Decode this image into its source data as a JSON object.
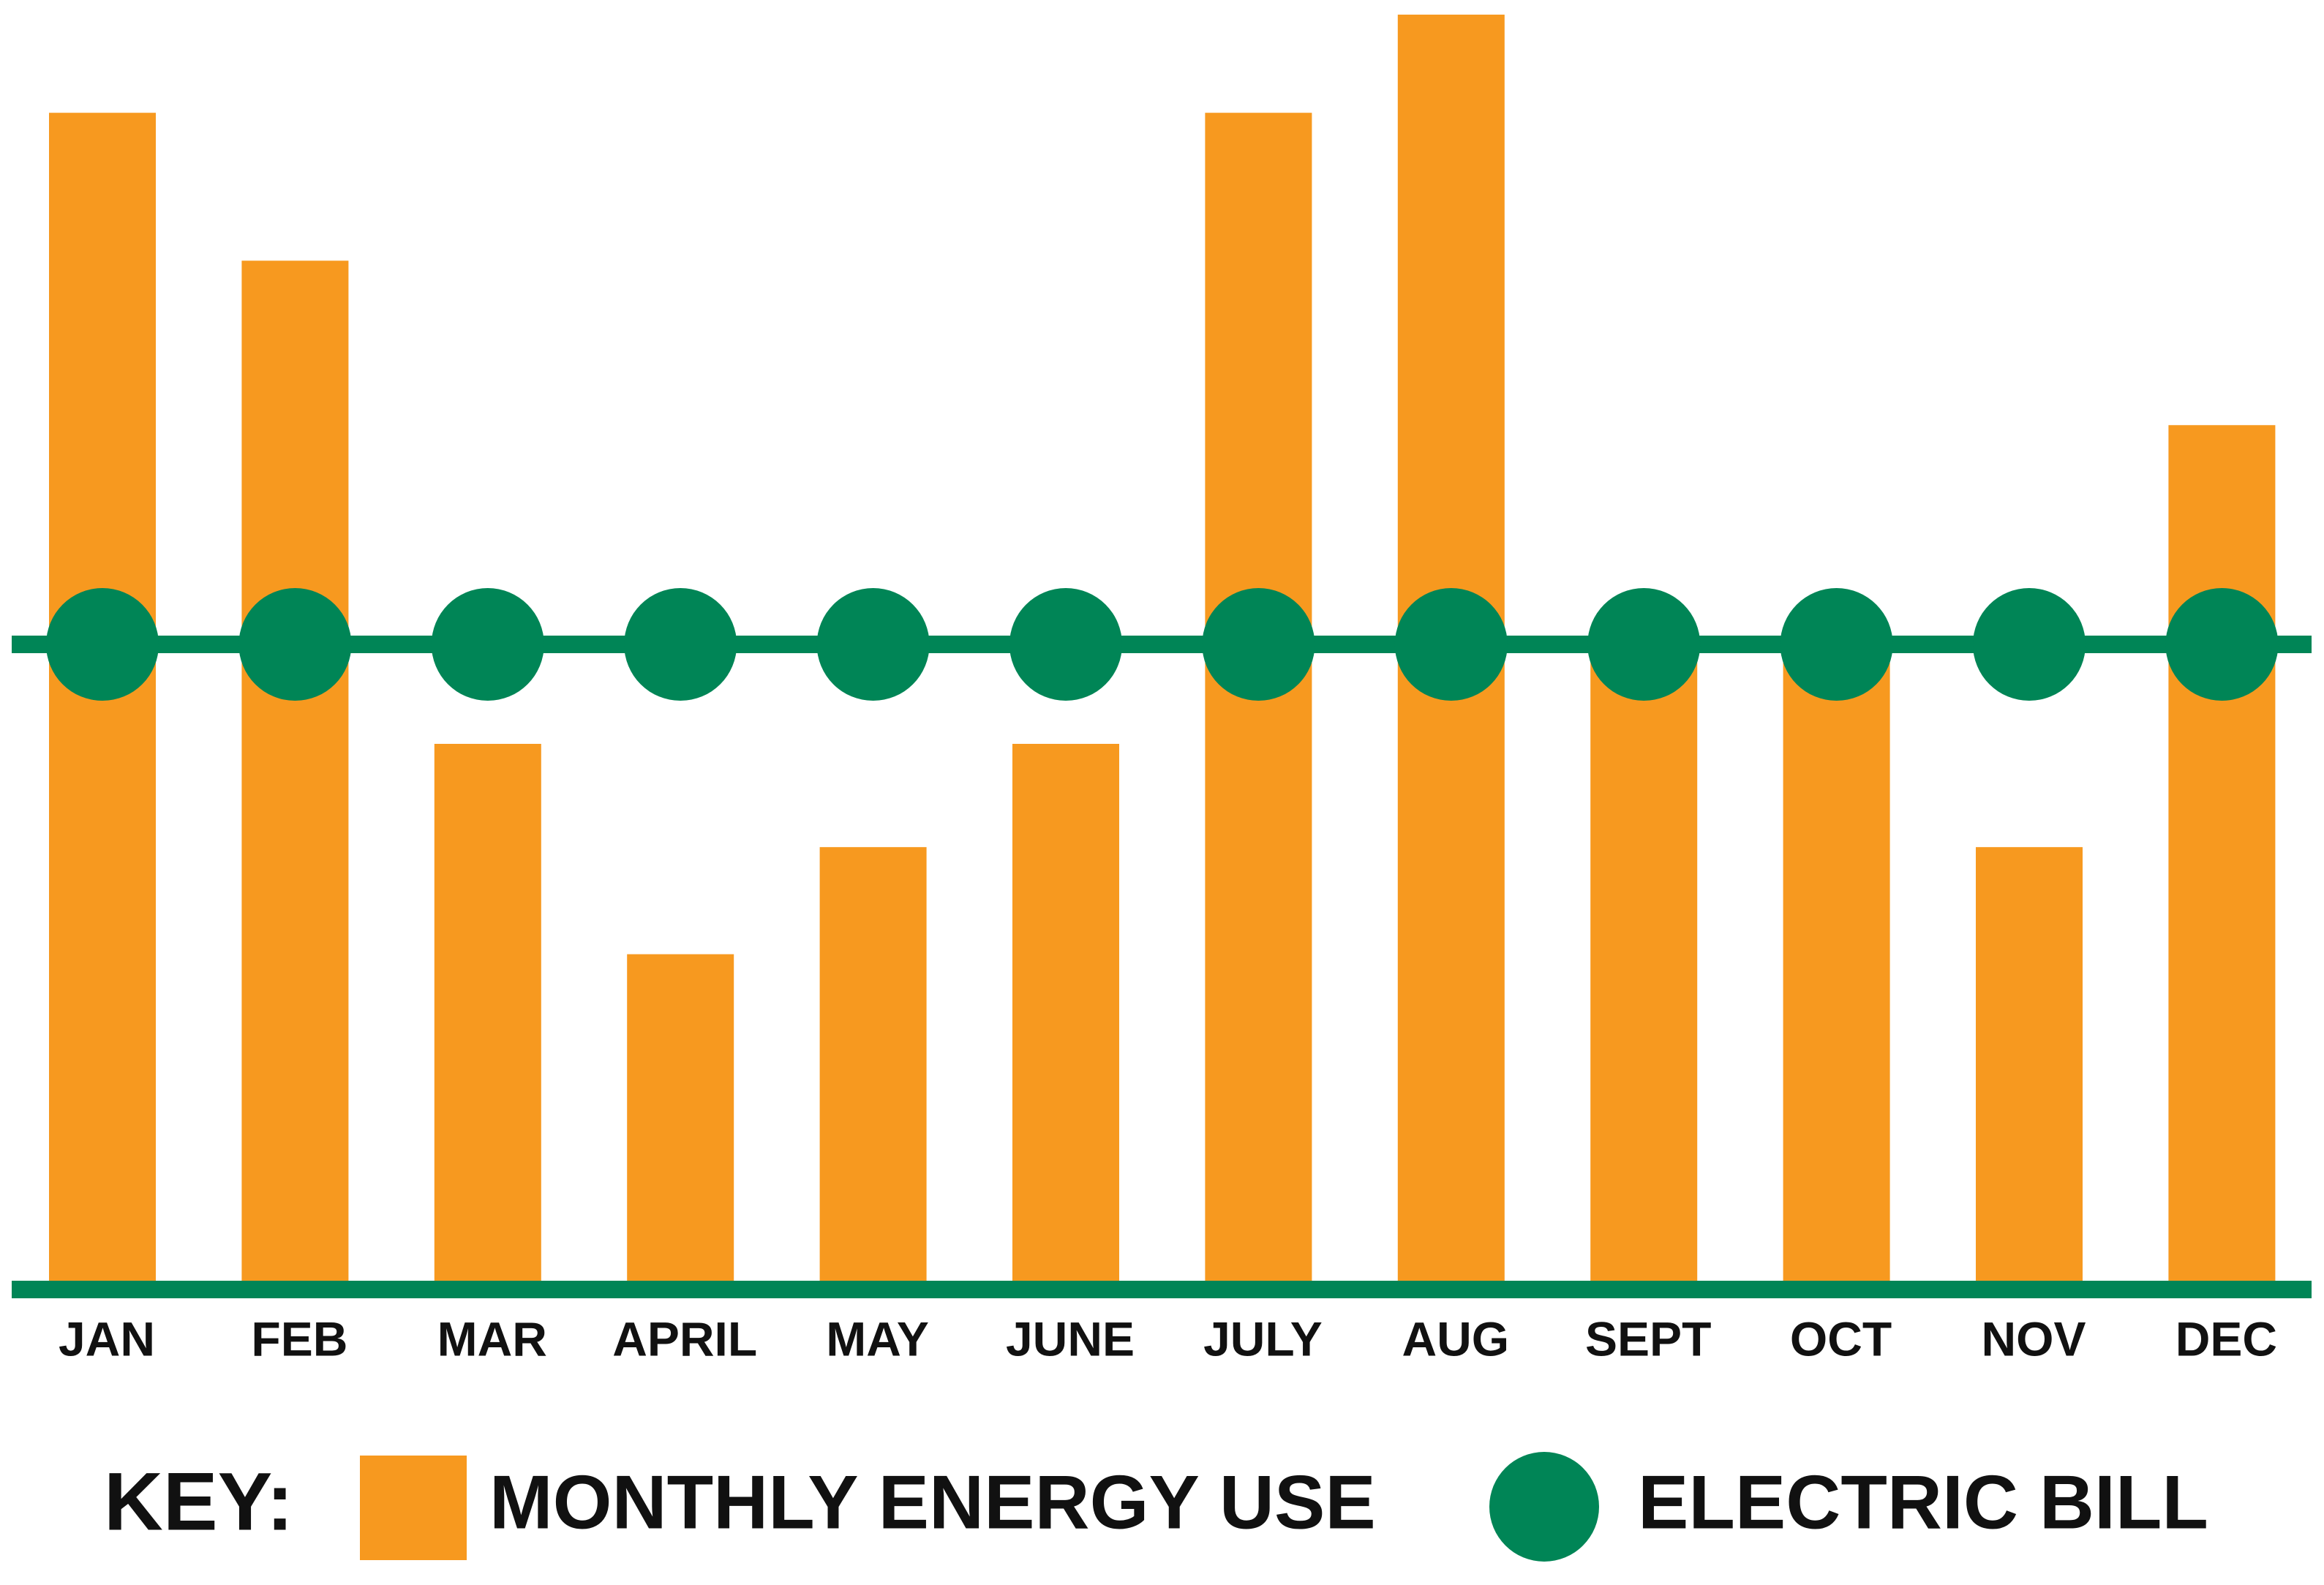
{
  "chart_data": {
    "type": "bar_line",
    "categories": [
      "JAN",
      "FEB",
      "MAR",
      "APRIL",
      "MAY",
      "JUNE",
      "JULY",
      "AUG",
      "SEPT",
      "OCT",
      "NOV",
      "DEC"
    ],
    "series": [
      {
        "name": "MONTHLY ENERGY USE",
        "color": "#f7991f",
        "type": "bar",
        "values": [
          92.3,
          80.7,
          42.8,
          26.3,
          34.7,
          42.8,
          92.3,
          100,
          50,
          50,
          34.7,
          67.8
        ]
      },
      {
        "name": "ELECTRIC BILL",
        "color": "#008556",
        "type": "line",
        "values": [
          50.6,
          50.6,
          50.6,
          50.6,
          50.6,
          50.6,
          50.6,
          50.6,
          50.6,
          50.6,
          50.6,
          50.6
        ]
      }
    ],
    "ylim": [
      0,
      100
    ],
    "legend_title": "KEY:",
    "legend_position": "bottom"
  }
}
